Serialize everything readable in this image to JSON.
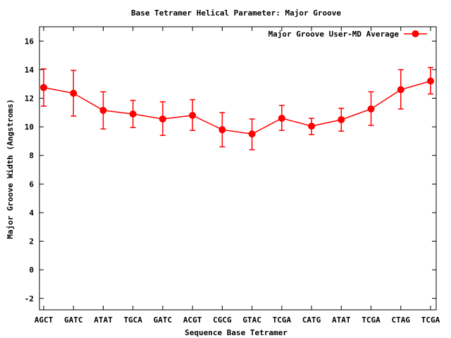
{
  "chart_data": {
    "type": "line",
    "title": "Base Tetramer Helical Parameter: Major Groove",
    "xlabel": "Sequence Base Tetramer",
    "ylabel": "Major Groove Width (Angstroms)",
    "categories": [
      "AGCT",
      "GATC",
      "ATAT",
      "TGCA",
      "GATC",
      "ACGT",
      "CGCG",
      "GTAC",
      "TCGA",
      "CATG",
      "ATAT",
      "TCGA",
      "CTAG",
      "TCGA"
    ],
    "ylim": [
      -2.8,
      17
    ],
    "yticks": [
      -2,
      0,
      2,
      4,
      6,
      8,
      10,
      12,
      14,
      16
    ],
    "grid": false,
    "legend_position": "top-right",
    "series": [
      {
        "name": "Major Groove User-MD Average",
        "color": "#ff0000",
        "values": [
          12.75,
          12.35,
          11.15,
          10.9,
          10.55,
          10.8,
          9.8,
          9.5,
          10.6,
          10.05,
          10.5,
          11.25,
          12.6,
          13.2
        ],
        "err_low": [
          11.45,
          10.75,
          9.85,
          9.95,
          9.4,
          9.75,
          8.6,
          8.4,
          9.75,
          9.45,
          9.7,
          10.1,
          11.25,
          12.3
        ],
        "err_high": [
          14.05,
          13.95,
          12.45,
          11.85,
          11.75,
          11.9,
          11.0,
          10.55,
          11.5,
          10.6,
          11.3,
          12.45,
          14.0,
          14.15
        ]
      }
    ]
  }
}
